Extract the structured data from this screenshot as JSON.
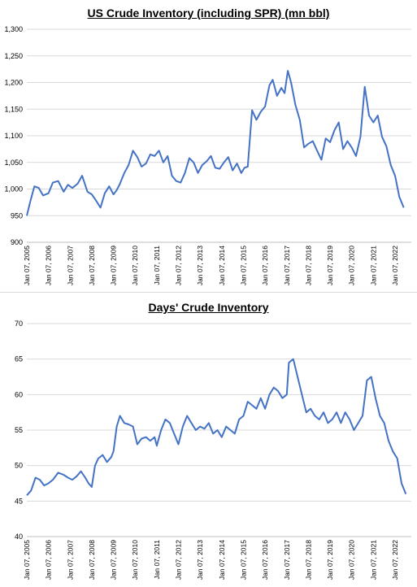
{
  "chart_data": [
    {
      "type": "line",
      "title": "US Crude Inventory (including SPR) (mn bbl)",
      "xlabel": "",
      "ylabel": "",
      "ylim": [
        900,
        1300
      ],
      "y_ticks": [
        "900",
        "950",
        "1,000",
        "1,050",
        "1,100",
        "1,150",
        "1,200",
        "1,250",
        "1,300"
      ],
      "y_tick_values": [
        900,
        950,
        1000,
        1050,
        1100,
        1150,
        1200,
        1250,
        1300
      ],
      "x_tick_labels": [
        "Jan 07, 2005",
        "Jan 07, 2006",
        "Jan 07, 2007",
        "Jan 07, 2008",
        "Jan 07, 2009",
        "Jan 07, 2010",
        "Jan 07, 2011",
        "Jan 07, 2012",
        "Jan 07, 2013",
        "Jan 07, 2014",
        "Jan 07, 2015",
        "Jan 07, 2016",
        "Jan 07, 2017",
        "Jan 07, 2018",
        "Jan 07, 2019",
        "Jan 07, 2020",
        "Jan 07, 2021",
        "Jan 07, 2022"
      ],
      "xlim": [
        2005.0,
        2022.75
      ],
      "grid": true,
      "legend": "none",
      "color": "#4472C4",
      "series": [
        {
          "x": [
            2005.0,
            2005.15,
            2005.35,
            2005.55,
            2005.75,
            2006.0,
            2006.2,
            2006.45,
            2006.7,
            2006.9,
            2007.1,
            2007.35,
            2007.55,
            2007.8,
            2008.0,
            2008.2,
            2008.4,
            2008.6,
            2008.8,
            2009.0,
            2009.15,
            2009.3,
            2009.5,
            2009.7,
            2009.9,
            2010.1,
            2010.3,
            2010.5,
            2010.7,
            2010.9,
            2011.1,
            2011.3,
            2011.5,
            2011.7,
            2011.9,
            2012.1,
            2012.3,
            2012.5,
            2012.7,
            2012.9,
            2013.1,
            2013.3,
            2013.5,
            2013.7,
            2013.9,
            2014.1,
            2014.3,
            2014.5,
            2014.7,
            2014.9,
            2015.05,
            2015.2,
            2015.4,
            2015.6,
            2015.8,
            2016.0,
            2016.2,
            2016.35,
            2016.55,
            2016.75,
            2016.9,
            2017.05,
            2017.2,
            2017.4,
            2017.6,
            2017.8,
            2018.0,
            2018.2,
            2018.4,
            2018.6,
            2018.8,
            2019.0,
            2019.2,
            2019.4,
            2019.6,
            2019.8,
            2020.0,
            2020.2,
            2020.4,
            2020.6,
            2020.8,
            2021.0,
            2021.2,
            2021.4,
            2021.6,
            2021.8,
            2022.0,
            2022.2,
            2022.4
          ],
          "y": [
            950,
            975,
            1005,
            1002,
            988,
            992,
            1012,
            1015,
            995,
            1008,
            1002,
            1010,
            1025,
            995,
            990,
            978,
            965,
            992,
            1005,
            990,
            998,
            1010,
            1030,
            1045,
            1072,
            1060,
            1042,
            1048,
            1065,
            1062,
            1072,
            1050,
            1062,
            1025,
            1015,
            1012,
            1030,
            1058,
            1050,
            1030,
            1045,
            1052,
            1062,
            1040,
            1038,
            1050,
            1060,
            1035,
            1048,
            1030,
            1040,
            1042,
            1148,
            1130,
            1145,
            1155,
            1195,
            1205,
            1175,
            1190,
            1180,
            1222,
            1200,
            1158,
            1130,
            1078,
            1085,
            1090,
            1072,
            1055,
            1095,
            1088,
            1110,
            1125,
            1075,
            1090,
            1078,
            1062,
            1098,
            1192,
            1138,
            1125,
            1138,
            1098,
            1080,
            1045,
            1025,
            985,
            965
          ]
        }
      ]
    },
    {
      "type": "line",
      "title": "Days' Crude Inventory",
      "xlabel": "",
      "ylabel": "",
      "ylim": [
        40,
        70
      ],
      "y_ticks": [
        "40",
        "45",
        "50",
        "55",
        "60",
        "65",
        "70"
      ],
      "y_tick_values": [
        40,
        45,
        50,
        55,
        60,
        65,
        70
      ],
      "x_tick_labels": [
        "Jan 07, 2005",
        "Jan 07, 2006",
        "Jan 07, 2007",
        "Jan 07, 2008",
        "Jan 07, 2009",
        "Jan 07, 2010",
        "Jan 07, 2011",
        "Jan 07, 2012",
        "Jan 07, 2013",
        "Jan 07, 2014",
        "Jan 07, 2015",
        "Jan 07, 2016",
        "Jan 07, 2017",
        "Jan 07, 2018",
        "Jan 07, 2019",
        "Jan 07, 2020",
        "Jan 07, 2021",
        "Jan 07, 2022"
      ],
      "xlim": [
        2005.0,
        2022.75
      ],
      "grid": true,
      "legend": "none",
      "color": "#4472C4",
      "series": [
        {
          "x": [
            2005.0,
            2005.2,
            2005.4,
            2005.6,
            2005.8,
            2006.0,
            2006.2,
            2006.45,
            2006.7,
            2006.9,
            2007.1,
            2007.3,
            2007.5,
            2007.7,
            2007.85,
            2008.0,
            2008.15,
            2008.3,
            2008.5,
            2008.7,
            2008.9,
            2009.0,
            2009.15,
            2009.3,
            2009.5,
            2009.7,
            2009.9,
            2010.1,
            2010.3,
            2010.5,
            2010.7,
            2010.9,
            2011.0,
            2011.2,
            2011.4,
            2011.6,
            2011.8,
            2012.0,
            2012.2,
            2012.4,
            2012.6,
            2012.8,
            2013.0,
            2013.2,
            2013.4,
            2013.6,
            2013.8,
            2014.0,
            2014.2,
            2014.4,
            2014.6,
            2014.8,
            2015.0,
            2015.2,
            2015.4,
            2015.6,
            2015.8,
            2016.0,
            2016.2,
            2016.4,
            2016.6,
            2016.8,
            2017.0,
            2017.1,
            2017.3,
            2017.5,
            2017.7,
            2017.9,
            2018.1,
            2018.3,
            2018.5,
            2018.7,
            2018.9,
            2019.1,
            2019.3,
            2019.5,
            2019.7,
            2019.9,
            2020.1,
            2020.3,
            2020.5,
            2020.7,
            2020.9,
            2021.1,
            2021.3,
            2021.5,
            2021.7,
            2021.9,
            2022.1,
            2022.3,
            2022.5
          ],
          "y": [
            45.8,
            46.5,
            48.3,
            48.0,
            47.2,
            47.5,
            48.0,
            49.0,
            48.7,
            48.3,
            48.0,
            48.5,
            49.2,
            48.3,
            47.5,
            47.0,
            50.0,
            51.0,
            51.5,
            50.5,
            51.2,
            52.0,
            55.5,
            57.0,
            56.0,
            55.8,
            55.5,
            53.0,
            53.8,
            54.0,
            53.5,
            54.0,
            52.8,
            55.0,
            56.5,
            56.0,
            54.5,
            53.0,
            55.5,
            57.0,
            56.0,
            55.0,
            55.5,
            55.2,
            56.0,
            54.5,
            55.0,
            54.0,
            55.5,
            55.0,
            54.5,
            56.5,
            57.0,
            59.0,
            58.5,
            58.0,
            59.5,
            58.0,
            60.0,
            61.0,
            60.5,
            59.5,
            60.0,
            64.5,
            65.0,
            62.5,
            60.0,
            57.5,
            58.0,
            57.0,
            56.5,
            57.5,
            56.0,
            56.5,
            57.5,
            56.0,
            57.5,
            56.5,
            55.0,
            56.0,
            57.0,
            62.0,
            62.5,
            59.5,
            57.0,
            56.0,
            53.5,
            52.0,
            51.0,
            47.5,
            46.0
          ]
        }
      ]
    }
  ]
}
